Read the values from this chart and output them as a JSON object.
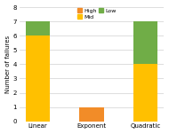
{
  "categories": [
    "Linear",
    "Exponent",
    "Quadratic"
  ],
  "high": [
    0,
    1,
    0
  ],
  "mid": [
    6,
    0,
    4
  ],
  "low": [
    1,
    0,
    3
  ],
  "colors": {
    "high": "#F28C28",
    "mid": "#FFC000",
    "low": "#70AD47"
  },
  "ylabel": "Number of failures",
  "ylim": [
    0,
    8
  ],
  "yticks": [
    0,
    1,
    2,
    3,
    4,
    5,
    6,
    7,
    8
  ],
  "background_color": "#ffffff"
}
